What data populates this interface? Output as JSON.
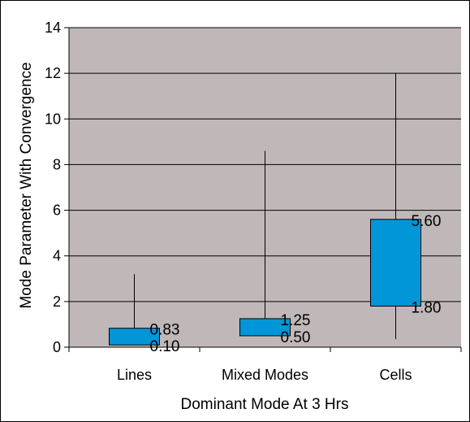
{
  "chart_data": {
    "type": "box",
    "categories": [
      "Lines",
      "Mixed Modes",
      "Cells"
    ],
    "series": [
      {
        "min": [
          0.1,
          0.5,
          0.35
        ],
        "box_low": [
          0.1,
          0.5,
          1.8
        ],
        "box_high": [
          0.83,
          1.25,
          5.6
        ],
        "max": [
          3.2,
          8.6,
          12.0
        ]
      }
    ],
    "data_labels": {
      "high": [
        "0.83",
        "1.25",
        "5.60"
      ],
      "low": [
        "0.10",
        "0.50",
        "1.80"
      ]
    },
    "xlabel": "Dominant Mode At 3 Hrs",
    "ylabel": "Mode Parameter With Convergence",
    "ylim": [
      0,
      14
    ],
    "yticks": [
      0,
      2,
      4,
      6,
      8,
      10,
      12,
      14
    ],
    "grid": true,
    "colors": {
      "plot_background": "#c0b8b8",
      "box_fill": "#0096d8",
      "box_stroke": "#000000",
      "gridline": "#000000"
    }
  }
}
